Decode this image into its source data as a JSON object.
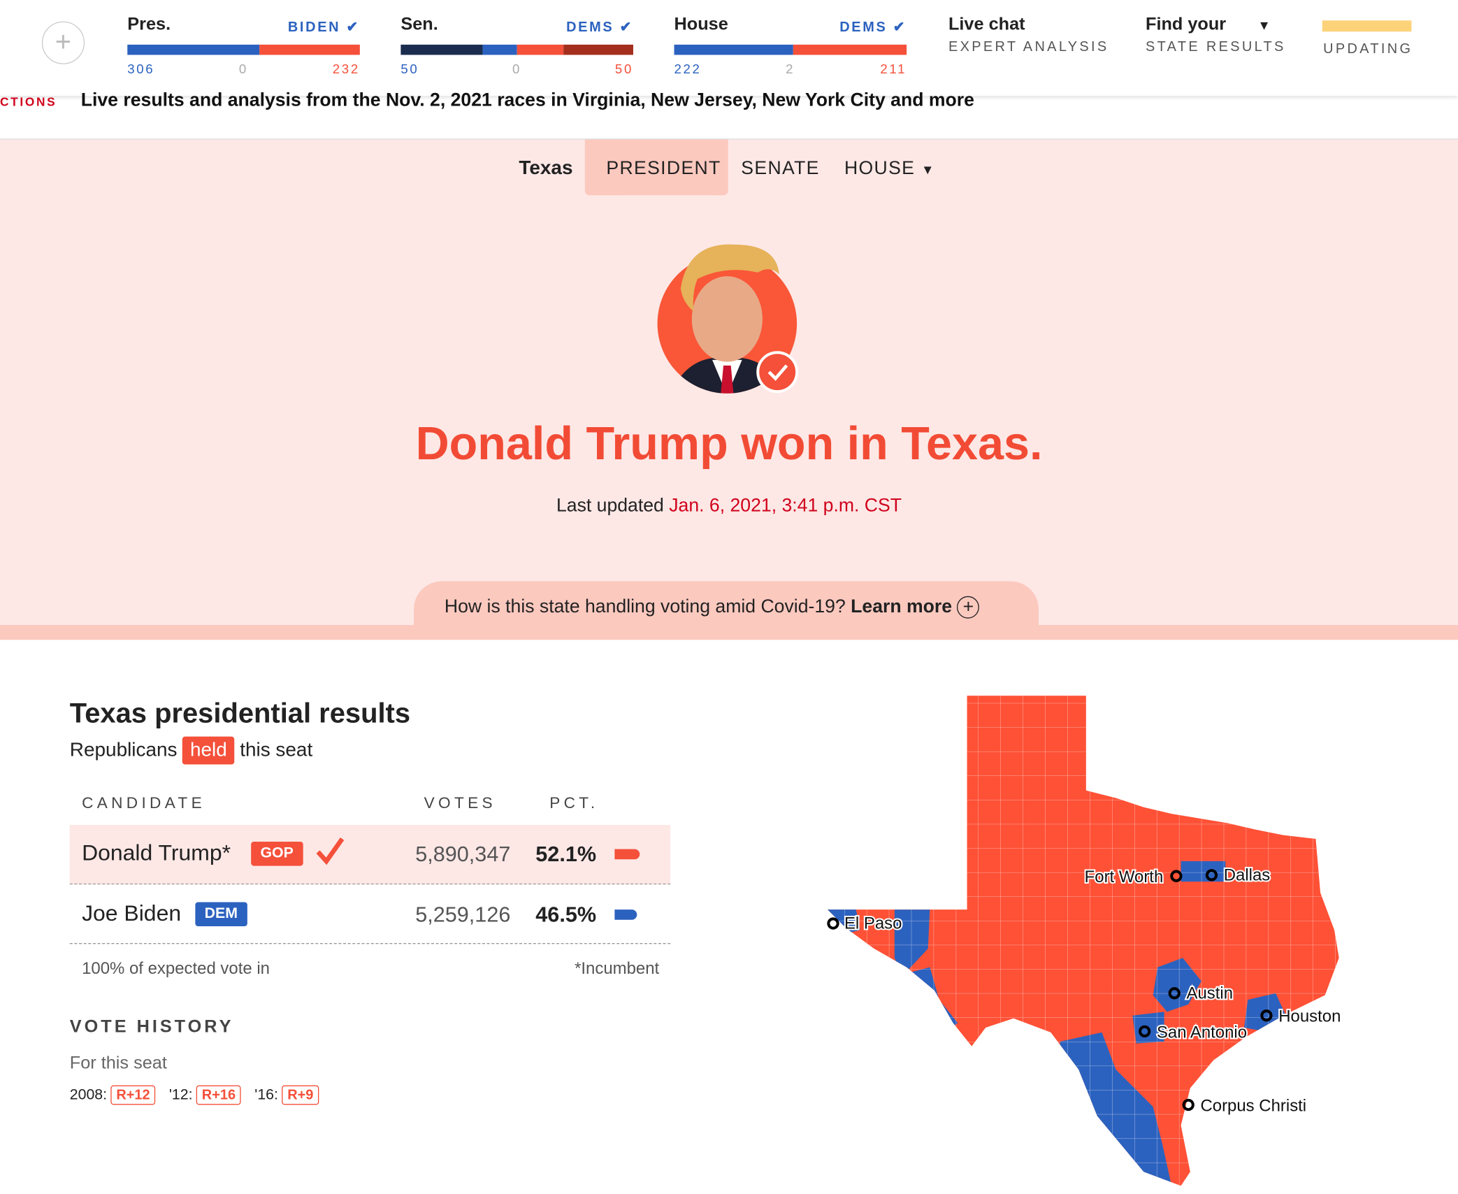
{
  "scoreboard": [
    {
      "label": "Pres.",
      "leader": "BIDEN",
      "left": "306",
      "middle": "0",
      "right": "232"
    },
    {
      "label": "Sen.",
      "leader": "DEMS",
      "left": "50",
      "middle": "0",
      "right": "50"
    },
    {
      "label": "House",
      "leader": "DEMS",
      "left": "222",
      "middle": "2",
      "right": "211"
    }
  ],
  "links": [
    {
      "title": "Live chat",
      "subtitle": "EXPERT ANALYSIS"
    },
    {
      "title": "Find your",
      "subtitle": "STATE RESULTS"
    }
  ],
  "status": "UPDATING",
  "ticker": {
    "label": "CTIONS",
    "text": "Live results and analysis from the Nov. 2, 2021 races in Virginia, New Jersey, New York City and more"
  },
  "nav": {
    "state": "Texas",
    "tabs": [
      "PRESIDENT",
      "SENATE",
      "HOUSE"
    ]
  },
  "hero": {
    "headline": "Donald Trump won in Texas.",
    "updated_label": "Last updated",
    "updated": "Jan. 6, 2021, 3:41 p.m. CST"
  },
  "covid": {
    "question": "How is this state handling voting amid Covid-19?",
    "link": "Learn more"
  },
  "results": {
    "title": "Texas presidential results",
    "seat": [
      "Republicans",
      "held",
      "this seat"
    ],
    "columns": [
      "CANDIDATE",
      "VOTES",
      "PCT."
    ],
    "rows": [
      {
        "name": "Donald Trump*",
        "party": "GOP",
        "votes": "5,890,347",
        "pct": "52.1%"
      },
      {
        "name": "Joe Biden",
        "party": "DEM",
        "votes": "5,259,126",
        "pct": "46.5%"
      }
    ],
    "footer": "100% of expected vote in",
    "note": "*Incumbent"
  },
  "history": {
    "title": "VOTE HISTORY",
    "subtitle": "For this seat",
    "items": [
      {
        "year": "2008:",
        "margin": "R+12"
      },
      {
        "year": "'12:",
        "margin": "R+16"
      },
      {
        "year": "'16:",
        "margin": "R+9"
      }
    ]
  },
  "map": {
    "cities": [
      "Fort Worth",
      "Dallas",
      "El Paso",
      "Austin",
      "Houston",
      "San Antonio",
      "Corpus Christi"
    ]
  }
}
